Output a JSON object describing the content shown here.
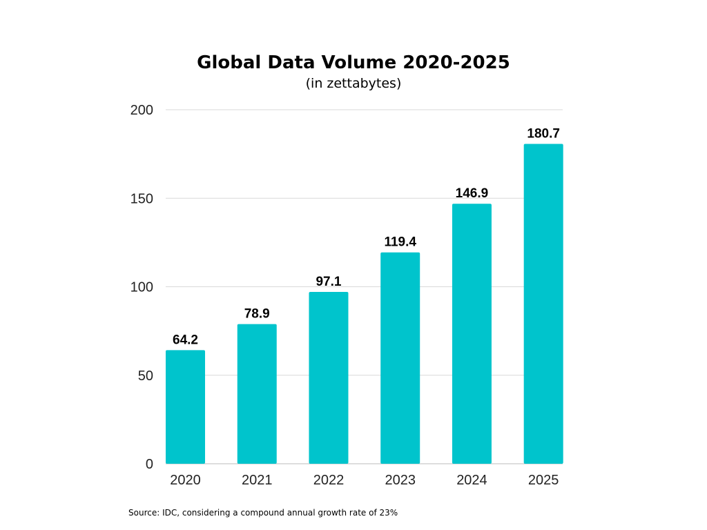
{
  "chart_data": {
    "type": "bar",
    "title": "Global Data Volume 2020-2025",
    "subtitle": "(in zettabytes)",
    "categories": [
      "2020",
      "2021",
      "2022",
      "2023",
      "2024",
      "2025"
    ],
    "values": [
      64.2,
      78.9,
      97.1,
      119.4,
      146.9,
      180.7
    ],
    "value_labels": [
      "64.2",
      "78.9",
      "97.1",
      "119.4",
      "146.9",
      "180.7"
    ],
    "ylim": [
      0,
      200
    ],
    "yticks": [
      "0",
      "50",
      "100",
      "150",
      "200"
    ],
    "xlabel": "",
    "ylabel": "",
    "grid": true,
    "bar_color": "#00C4CC",
    "grid_color": "#D9D9D9"
  },
  "source_note": "Source: IDC,  considering a compound annual growth rate of 23%"
}
